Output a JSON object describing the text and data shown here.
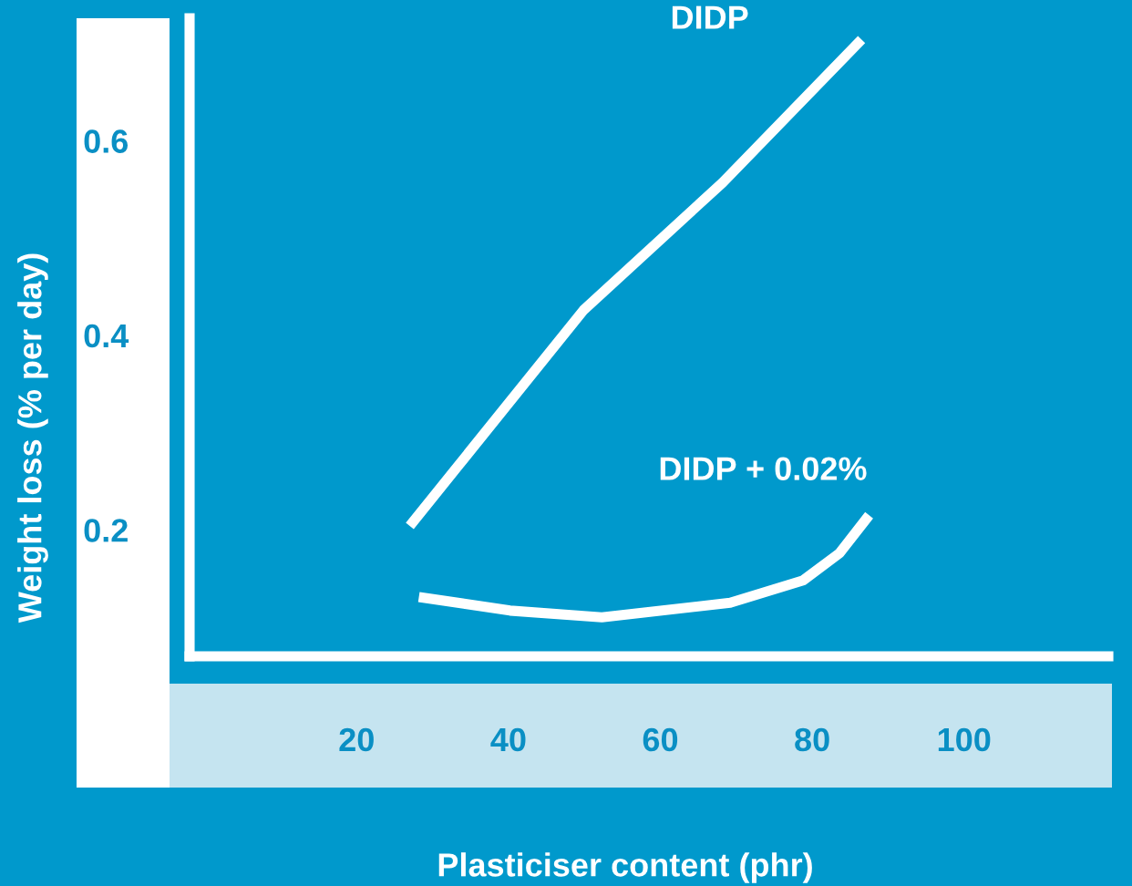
{
  "chart_data": {
    "type": "line",
    "xlabel": "Plasticiser content (phr)",
    "ylabel": "Weight loss (% per day)",
    "xlim": [
      -2,
      119
    ],
    "ylim": [
      0.07,
      0.726
    ],
    "xticks": [
      20,
      40,
      60,
      80,
      100
    ],
    "yticks": [
      0.2,
      0.4,
      0.6
    ],
    "grid": false,
    "legend": false,
    "marker": "none",
    "line_style": "solid",
    "series": [
      {
        "name": "DIDP",
        "color": "#ffffff",
        "x": [
          27,
          49.9,
          68.2,
          86.5
        ],
        "values": [
          0.204,
          0.426,
          0.557,
          0.704
        ]
      },
      {
        "name": "DIDP + 0.02%",
        "color": "#ffffff",
        "x": [
          28.2,
          40.2,
          52.3,
          69.2,
          78.8,
          83.6,
          87.5
        ],
        "values": [
          0.131,
          0.117,
          0.11,
          0.125,
          0.148,
          0.176,
          0.215
        ]
      }
    ]
  }
}
